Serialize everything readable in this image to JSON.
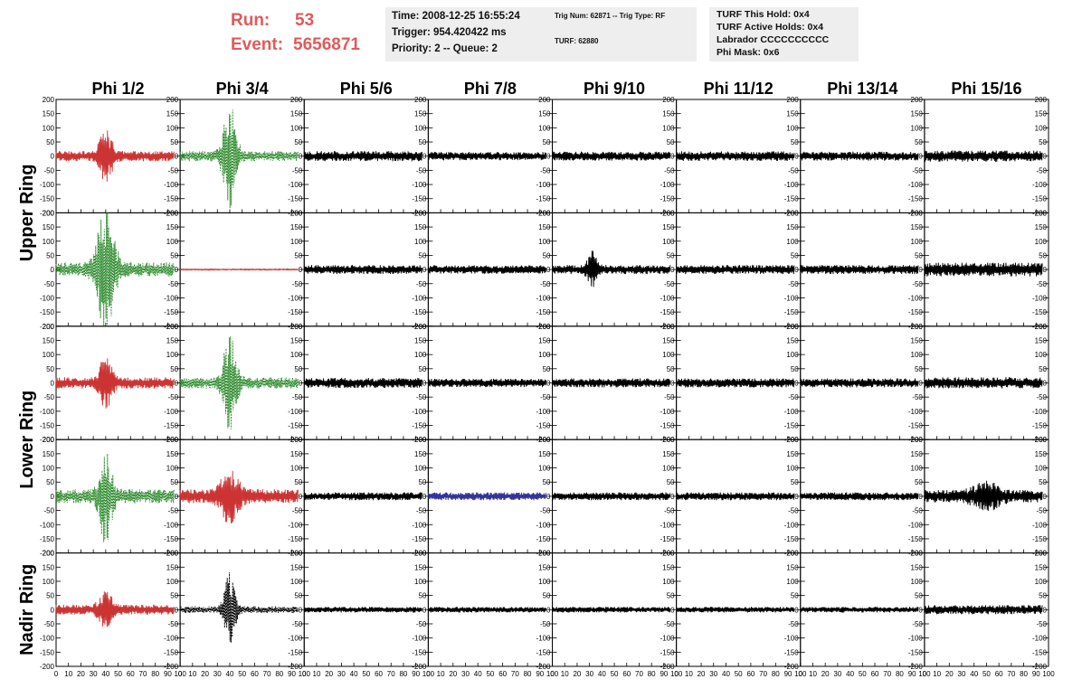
{
  "header": {
    "run_label": "Run:",
    "run_value": "53",
    "event_label": "Event:",
    "event_value": "5656871",
    "time_box": [
      "Time: 2008-12-25 16:55:24",
      "Trigger: 954.420422 ms",
      "Priority: 2 -- Queue: 2"
    ],
    "trig_box": [
      "Trig Num: 62871 -- Trig Type: RF",
      "TURF: 62880"
    ],
    "turf_box": [
      "TURF This Hold: 0x4",
      "TURF Active Holds: 0x4",
      "Labrador CCCCCCCCCC",
      "Phi Mask: 0x6"
    ]
  },
  "chart_data": {
    "type": "line",
    "title": "",
    "columns": [
      "Phi 1/2",
      "Phi 3/4",
      "Phi 5/6",
      "Phi 7/8",
      "Phi 9/10",
      "Phi 11/12",
      "Phi 13/14",
      "Phi 15/16"
    ],
    "row_groups": [
      {
        "label": "Upper Ring",
        "rows": [
          0,
          1
        ]
      },
      {
        "label": "Lower Ring",
        "rows": [
          2,
          3
        ]
      },
      {
        "label": "Nadir Ring",
        "rows": [
          4
        ]
      }
    ],
    "xlim": [
      0,
      100
    ],
    "ylim": [
      -200,
      200
    ],
    "x_ticks": [
      0,
      10,
      20,
      30,
      40,
      50,
      60,
      70,
      80,
      90,
      100
    ],
    "y_ticks": [
      200,
      150,
      100,
      50,
      0,
      -50,
      -100,
      -150,
      -200
    ],
    "trace_x_range": [
      0,
      95
    ],
    "colors": {
      "red": "#cc3333",
      "green": "#2e8b2e",
      "blue": "#333399",
      "black": "#000000"
    },
    "panels": [
      [
        {
          "color": "red",
          "dashed": false,
          "amp": 18,
          "burst_center": 40,
          "burst_peak": 85,
          "burst_width": 6
        },
        {
          "color": "green",
          "dashed": true,
          "amp": 18,
          "burst_center": 40,
          "burst_peak": 170,
          "burst_width": 6
        },
        {
          "color": "black",
          "dashed": false,
          "amp": 18,
          "burst_center": 0,
          "burst_peak": 0,
          "burst_width": 0
        },
        {
          "color": "black",
          "dashed": false,
          "amp": 15,
          "burst_center": 0,
          "burst_peak": 0,
          "burst_width": 0
        },
        {
          "color": "black",
          "dashed": false,
          "amp": 16,
          "burst_center": 0,
          "burst_peak": 0,
          "burst_width": 0
        },
        {
          "color": "black",
          "dashed": false,
          "amp": 17,
          "burst_center": 0,
          "burst_peak": 0,
          "burst_width": 0
        },
        {
          "color": "black",
          "dashed": false,
          "amp": 16,
          "burst_center": 0,
          "burst_peak": 0,
          "burst_width": 0
        },
        {
          "color": "black",
          "dashed": false,
          "amp": 20,
          "burst_center": 0,
          "burst_peak": 0,
          "burst_width": 0
        }
      ],
      [
        {
          "color": "green",
          "dashed": true,
          "amp": 25,
          "burst_center": 40,
          "burst_peak": 200,
          "burst_width": 8
        },
        {
          "color": "red",
          "dashed": false,
          "amp": 2,
          "burst_center": 0,
          "burst_peak": 0,
          "burst_width": 0
        },
        {
          "color": "black",
          "dashed": false,
          "amp": 16,
          "burst_center": 0,
          "burst_peak": 0,
          "burst_width": 0
        },
        {
          "color": "black",
          "dashed": false,
          "amp": 15,
          "burst_center": 0,
          "burst_peak": 0,
          "burst_width": 0
        },
        {
          "color": "black",
          "dashed": false,
          "amp": 16,
          "burst_center": 32,
          "burst_peak": 60,
          "burst_width": 4
        },
        {
          "color": "black",
          "dashed": false,
          "amp": 16,
          "burst_center": 0,
          "burst_peak": 0,
          "burst_width": 0
        },
        {
          "color": "black",
          "dashed": false,
          "amp": 16,
          "burst_center": 0,
          "burst_peak": 0,
          "burst_width": 0
        },
        {
          "color": "black",
          "dashed": false,
          "amp": 25,
          "burst_center": 0,
          "burst_peak": 0,
          "burst_width": 0
        }
      ],
      [
        {
          "color": "red",
          "dashed": false,
          "amp": 20,
          "burst_center": 40,
          "burst_peak": 80,
          "burst_width": 6
        },
        {
          "color": "green",
          "dashed": true,
          "amp": 20,
          "burst_center": 40,
          "burst_peak": 160,
          "burst_width": 6
        },
        {
          "color": "black",
          "dashed": false,
          "amp": 18,
          "burst_center": 0,
          "burst_peak": 0,
          "burst_width": 0
        },
        {
          "color": "black",
          "dashed": false,
          "amp": 15,
          "burst_center": 0,
          "burst_peak": 0,
          "burst_width": 0
        },
        {
          "color": "black",
          "dashed": false,
          "amp": 16,
          "burst_center": 0,
          "burst_peak": 0,
          "burst_width": 0
        },
        {
          "color": "black",
          "dashed": false,
          "amp": 16,
          "burst_center": 0,
          "burst_peak": 0,
          "burst_width": 0
        },
        {
          "color": "black",
          "dashed": false,
          "amp": 16,
          "burst_center": 0,
          "burst_peak": 0,
          "burst_width": 0
        },
        {
          "color": "black",
          "dashed": false,
          "amp": 20,
          "burst_center": 0,
          "burst_peak": 0,
          "burst_width": 0
        }
      ],
      [
        {
          "color": "green",
          "dashed": true,
          "amp": 25,
          "burst_center": 40,
          "burst_peak": 150,
          "burst_width": 6
        },
        {
          "color": "red",
          "dashed": false,
          "amp": 25,
          "burst_center": 40,
          "burst_peak": 80,
          "burst_width": 8
        },
        {
          "color": "black",
          "dashed": false,
          "amp": 14,
          "burst_center": 0,
          "burst_peak": 0,
          "burst_width": 0
        },
        {
          "color": "blue",
          "dashed": false,
          "amp": 14,
          "burst_center": 0,
          "burst_peak": 0,
          "burst_width": 0
        },
        {
          "color": "black",
          "dashed": false,
          "amp": 14,
          "burst_center": 0,
          "burst_peak": 0,
          "burst_width": 0
        },
        {
          "color": "black",
          "dashed": false,
          "amp": 14,
          "burst_center": 0,
          "burst_peak": 0,
          "burst_width": 0
        },
        {
          "color": "black",
          "dashed": false,
          "amp": 14,
          "burst_center": 0,
          "burst_peak": 0,
          "burst_width": 0
        },
        {
          "color": "black",
          "dashed": false,
          "amp": 22,
          "burst_center": 50,
          "burst_peak": 35,
          "burst_width": 12
        }
      ],
      [
        {
          "color": "red",
          "dashed": false,
          "amp": 18,
          "burst_center": 40,
          "burst_peak": 55,
          "burst_width": 6
        },
        {
          "color": "black",
          "dashed": true,
          "amp": 12,
          "burst_center": 40,
          "burst_peak": 120,
          "burst_width": 5
        },
        {
          "color": "black",
          "dashed": false,
          "amp": 10,
          "burst_center": 0,
          "burst_peak": 0,
          "burst_width": 0
        },
        {
          "color": "black",
          "dashed": false,
          "amp": 10,
          "burst_center": 0,
          "burst_peak": 0,
          "burst_width": 0
        },
        {
          "color": "black",
          "dashed": false,
          "amp": 10,
          "burst_center": 0,
          "burst_peak": 0,
          "burst_width": 0
        },
        {
          "color": "black",
          "dashed": false,
          "amp": 10,
          "burst_center": 0,
          "burst_peak": 0,
          "burst_width": 0
        },
        {
          "color": "black",
          "dashed": false,
          "amp": 10,
          "burst_center": 0,
          "burst_peak": 0,
          "burst_width": 0
        },
        {
          "color": "black",
          "dashed": false,
          "amp": 16,
          "burst_center": 0,
          "burst_peak": 0,
          "burst_width": 0
        }
      ]
    ]
  }
}
